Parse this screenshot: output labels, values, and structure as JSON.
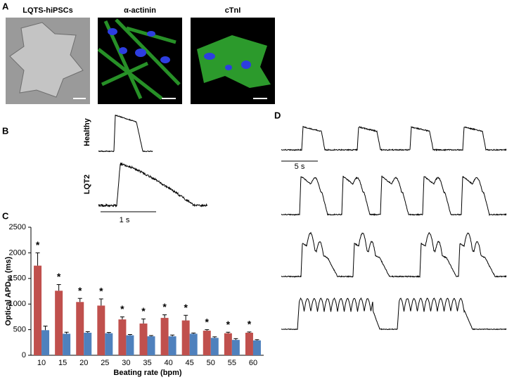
{
  "panels": {
    "a": {
      "letter": "A",
      "images": [
        "LQTS-hiPSCs",
        "α-actinin",
        "cTnI"
      ]
    },
    "b": {
      "letter": "B",
      "traces": [
        "Healthy",
        "LQT2"
      ],
      "scale": "1 s"
    },
    "c": {
      "letter": "C"
    },
    "d": {
      "letter": "D",
      "scale": "5 s"
    }
  },
  "chart_data": {
    "type": "bar",
    "ylabel": {
      "main": "Optical APD",
      "sub": "90",
      "unit": " (ms)"
    },
    "xlabel": "Beating rate (bpm)",
    "categories": [
      10,
      15,
      20,
      25,
      30,
      35,
      40,
      45,
      50,
      55,
      60
    ],
    "series": [
      {
        "color": "#c0504d",
        "values": [
          1750,
          1260,
          1040,
          970,
          700,
          620,
          730,
          680,
          480,
          430,
          440
        ],
        "errors": [
          250,
          120,
          70,
          130,
          50,
          90,
          60,
          100,
          20,
          20,
          15
        ]
      },
      {
        "color": "#4f81bd",
        "values": [
          490,
          420,
          440,
          430,
          390,
          370,
          370,
          420,
          340,
          300,
          290
        ],
        "errors": [
          80,
          30,
          20,
          15,
          15,
          15,
          25,
          15,
          20,
          25,
          15
        ]
      }
    ],
    "significance": [
      "*",
      "*",
      "*",
      "*",
      "*",
      "*",
      "*",
      "*",
      "*",
      "*",
      "*"
    ],
    "ylim": [
      0,
      2500
    ],
    "yticks": [
      0,
      500,
      1000,
      1500,
      2000,
      2500
    ]
  }
}
